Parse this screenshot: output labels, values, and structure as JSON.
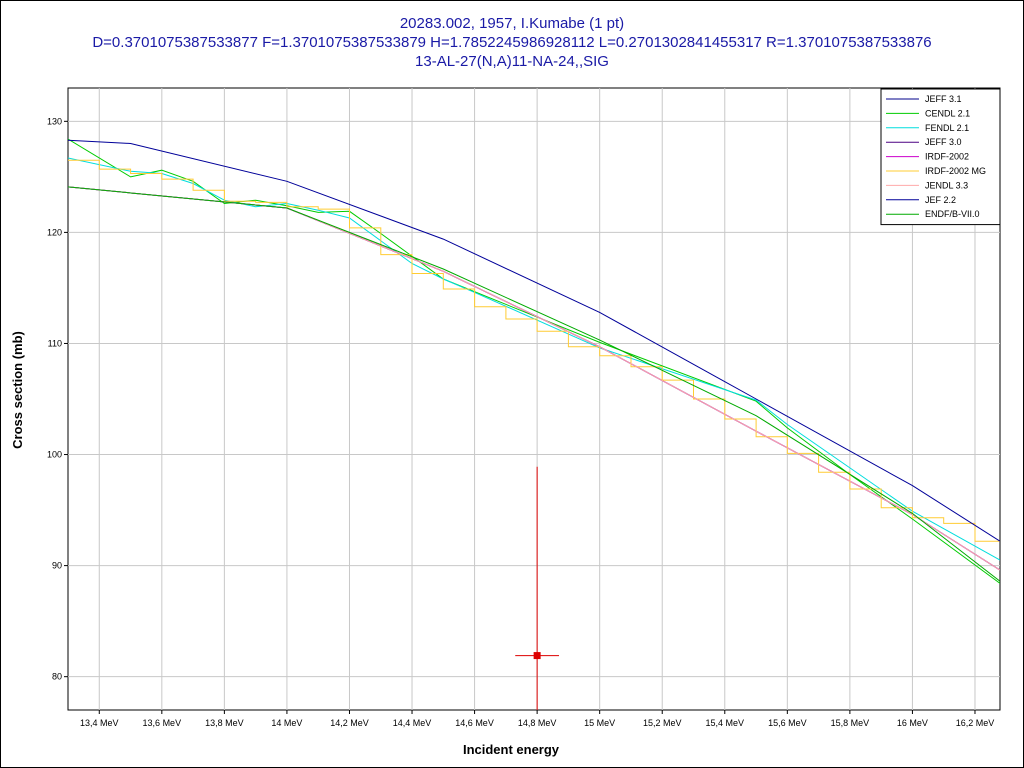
{
  "title_lines": [
    "20283.002, 1957, I.Kumabe (1 pt)",
    "D=0.3701075387533877 F=1.3701075387533879 H=1.7852245986928112 L=0.2701302841455317 R=1.3701075387533876",
    "13-AL-27(N,A)11-NA-24,,SIG"
  ],
  "chart_data": {
    "type": "line",
    "title": "20283.002, 1957, I.Kumabe (1 pt)",
    "xlabel": "Incident energy",
    "ylabel": "Cross section (mb)",
    "x_unit": "MeV",
    "xlim": [
      13.3,
      16.28
    ],
    "ylim": [
      77,
      133
    ],
    "grid": true,
    "legend_position": "top-right",
    "x_ticks": [
      {
        "value": 13.4,
        "label": "13,4 MeV"
      },
      {
        "value": 13.6,
        "label": "13,6 MeV"
      },
      {
        "value": 13.8,
        "label": "13,8 MeV"
      },
      {
        "value": 14.0,
        "label": "14 MeV"
      },
      {
        "value": 14.2,
        "label": "14,2 MeV"
      },
      {
        "value": 14.4,
        "label": "14,4 MeV"
      },
      {
        "value": 14.6,
        "label": "14,6 MeV"
      },
      {
        "value": 14.8,
        "label": "14,8 MeV"
      },
      {
        "value": 15.0,
        "label": "15 MeV"
      },
      {
        "value": 15.2,
        "label": "15,2 MeV"
      },
      {
        "value": 15.4,
        "label": "15,4 MeV"
      },
      {
        "value": 15.6,
        "label": "15,6 MeV"
      },
      {
        "value": 15.8,
        "label": "15,8 MeV"
      },
      {
        "value": 16.0,
        "label": "16 MeV"
      },
      {
        "value": 16.2,
        "label": "16,2 MeV"
      }
    ],
    "y_ticks": [
      {
        "value": 80,
        "label": "80"
      },
      {
        "value": 90,
        "label": "90"
      },
      {
        "value": 100,
        "label": "100"
      },
      {
        "value": 110,
        "label": "110"
      },
      {
        "value": 120,
        "label": "120"
      },
      {
        "value": 130,
        "label": "130"
      }
    ],
    "series": [
      {
        "name": "JEFF 3.1",
        "color": "#00008b",
        "step": false,
        "x": [
          13.3,
          14.0,
          14.5,
          15.0,
          15.5,
          16.0,
          16.28
        ],
        "y": [
          124.1,
          122.2,
          116.5,
          109.7,
          102.1,
          94.6,
          89.6
        ]
      },
      {
        "name": "CENDL 2.1",
        "color": "#00cc00",
        "step": false,
        "x": [
          13.3,
          13.5,
          13.6,
          13.7,
          13.8,
          13.9,
          14.0,
          14.1,
          14.2,
          14.3,
          14.5,
          15.0,
          15.5,
          15.6,
          15.8,
          16.0,
          16.28
        ],
        "y": [
          128.4,
          125.0,
          125.6,
          124.6,
          122.6,
          122.9,
          122.4,
          121.8,
          121.9,
          119.9,
          115.8,
          110.1,
          104.8,
          102.4,
          98.2,
          94.2,
          88.4
        ]
      },
      {
        "name": "FENDL 2.1",
        "color": "#00dddd",
        "step": false,
        "x": [
          13.3,
          13.5,
          13.6,
          13.7,
          13.8,
          13.9,
          14.0,
          14.1,
          14.2,
          14.4,
          14.5,
          14.6,
          15.0,
          15.5,
          15.6,
          15.8,
          16.0,
          16.28
        ],
        "y": [
          126.7,
          125.5,
          125.3,
          124.4,
          122.9,
          122.3,
          122.6,
          122.0,
          121.3,
          117.2,
          115.8,
          114.6,
          109.6,
          104.9,
          102.7,
          98.8,
          94.9,
          90.5
        ]
      },
      {
        "name": "JEFF 3.0",
        "color": "#4b0082",
        "step": false,
        "x": [
          13.3,
          14.0,
          14.5,
          15.0,
          15.5,
          16.0,
          16.28
        ],
        "y": [
          124.1,
          122.2,
          116.5,
          109.7,
          102.1,
          94.6,
          89.6
        ]
      },
      {
        "name": "IRDF-2002",
        "color": "#cc00cc",
        "step": false,
        "x": [
          13.3,
          14.0,
          14.5,
          15.0,
          15.5,
          16.0,
          16.28
        ],
        "y": [
          124.1,
          122.2,
          116.5,
          109.7,
          102.1,
          94.6,
          89.6
        ]
      },
      {
        "name": "IRDF-2002 MG",
        "color": "#ffcc33",
        "step": true,
        "x": [
          13.3,
          13.4,
          13.5,
          13.6,
          13.7,
          13.8,
          13.9,
          14.0,
          14.1,
          14.2,
          14.3,
          14.4,
          14.5,
          14.6,
          14.7,
          14.8,
          14.9,
          15.0,
          15.1,
          15.2,
          15.3,
          15.4,
          15.5,
          15.6,
          15.7,
          15.8,
          15.9,
          16.0,
          16.1,
          16.2,
          16.28
        ],
        "y": [
          126.5,
          125.7,
          125.3,
          124.8,
          123.8,
          122.8,
          122.7,
          122.3,
          122.1,
          120.4,
          118.0,
          116.3,
          114.9,
          113.3,
          112.2,
          111.1,
          109.7,
          108.9,
          107.9,
          106.7,
          105.0,
          103.2,
          101.6,
          100.1,
          98.4,
          96.9,
          95.2,
          94.3,
          93.8,
          92.2,
          91.0
        ]
      },
      {
        "name": "JENDL 3.3",
        "color": "#ffaaaa",
        "step": false,
        "x": [
          13.3,
          14.0,
          14.5,
          15.0,
          15.5,
          16.0,
          16.28
        ],
        "y": [
          124.1,
          122.2,
          116.5,
          109.7,
          102.1,
          94.6,
          89.6
        ]
      },
      {
        "name": "JEF 2.2",
        "color": "#000099",
        "step": false,
        "x": [
          13.3,
          13.5,
          14.0,
          14.5,
          15.0,
          15.5,
          16.0,
          16.28
        ],
        "y": [
          128.3,
          128.0,
          124.6,
          119.4,
          112.8,
          105.0,
          97.2,
          92.2
        ]
      },
      {
        "name": "ENDF/B-VII.0",
        "color": "#00aa00",
        "step": false,
        "x": [
          13.3,
          14.0,
          14.5,
          15.0,
          15.5,
          16.0,
          16.28
        ],
        "y": [
          124.1,
          122.2,
          116.7,
          110.3,
          103.5,
          94.7,
          88.6
        ]
      }
    ],
    "points": [
      {
        "name": "I.Kumabe 1957",
        "x": 14.8,
        "y": 81.9,
        "yerr_low": 81.9,
        "yerr_high": 98.9,
        "xerr": 0.07,
        "color": "#dd0000"
      }
    ]
  }
}
